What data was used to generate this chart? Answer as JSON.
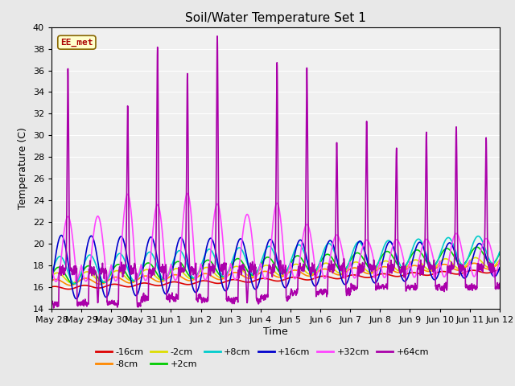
{
  "title": "Soil/Water Temperature Set 1",
  "xlabel": "Time",
  "ylabel": "Temperature (C)",
  "ylim": [
    14,
    40
  ],
  "yticks": [
    14,
    16,
    18,
    20,
    22,
    24,
    26,
    28,
    30,
    32,
    34,
    36,
    38,
    40
  ],
  "annotation": "EE_met",
  "annotation_color": "#aa0000",
  "annotation_bg": "#ffffcc",
  "annotation_border": "#886600",
  "background_color": "#e8e8e8",
  "plot_bg": "#f0f0f0",
  "series": {
    "-16cm": {
      "color": "#dd0000",
      "lw": 1.2
    },
    "-8cm": {
      "color": "#ff8800",
      "lw": 1.2
    },
    "-2cm": {
      "color": "#dddd00",
      "lw": 1.2
    },
    "+2cm": {
      "color": "#00cc00",
      "lw": 1.2
    },
    "+8cm": {
      "color": "#00cccc",
      "lw": 1.2
    },
    "+16cm": {
      "color": "#0000cc",
      "lw": 1.2
    },
    "+32cm": {
      "color": "#ff44ff",
      "lw": 1.2
    },
    "+64cm": {
      "color": "#aa00aa",
      "lw": 1.2
    }
  },
  "xtick_labels": [
    "May 28",
    "May 29",
    "May 30",
    "May 31",
    "Jun 1",
    "Jun 2",
    "Jun 3",
    "Jun 4",
    "Jun 5",
    "Jun 6",
    "Jun 7",
    "Jun 8",
    "Jun 9",
    "Jun 10",
    "Jun 11",
    "Jun 12"
  ],
  "num_points": 2880,
  "days": 15
}
